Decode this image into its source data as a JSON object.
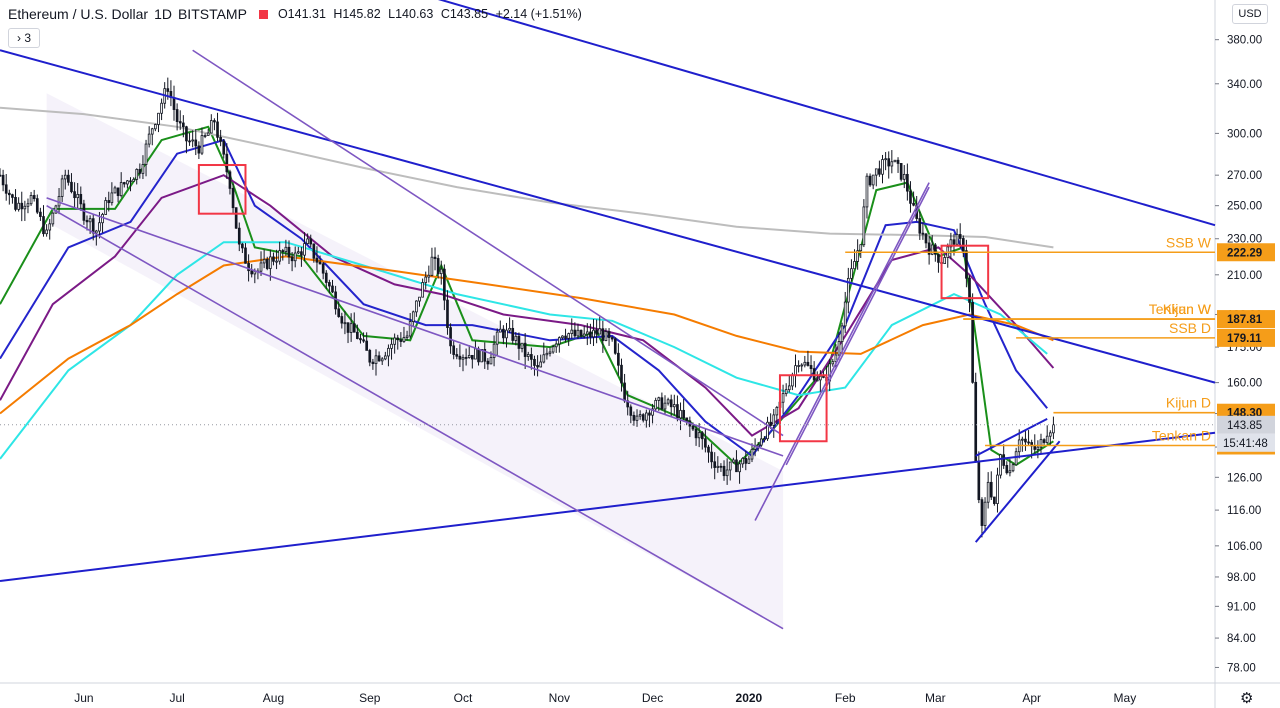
{
  "header": {
    "symbol": "Ethereum / U.S. Dollar",
    "interval": "1D",
    "exchange": "BITSTAMP",
    "open_label": "O",
    "open": "141.31",
    "high_label": "H",
    "high": "145.82",
    "low_label": "L",
    "low": "140.63",
    "close_label": "C",
    "close": "143.85",
    "change": "+2.14 (+1.51%)"
  },
  "collapse_button": {
    "label": "› 3"
  },
  "currency_button": {
    "label": "USD"
  },
  "icons": {
    "settings": "gear-icon",
    "collapse": "chevron-right-icon"
  },
  "colors": {
    "up": "#131722",
    "down": "#131722",
    "ema_green": "#1a8f1a",
    "ema_blue": "#2424cc",
    "ema_purple": "#7b1a86",
    "ema_cyan": "#2ee6e6",
    "ema_orange": "#f57c00",
    "ema_gray": "#bdbdbd",
    "trend": "#1f1fcc",
    "channel": "#7e57c2",
    "level": "#f59d19",
    "box": "#f23645",
    "current_price": "#d1d4dc"
  },
  "chart_data": {
    "type": "candlestick",
    "title": "Ethereum / U.S. Dollar",
    "y_scale": "log",
    "ylim": [
      75,
      420
    ],
    "y_ticks": [
      78,
      84,
      91,
      98,
      106,
      116,
      126,
      136,
      148,
      160,
      175,
      190,
      210,
      230,
      250,
      270,
      300,
      340,
      380
    ],
    "y_tick_labels": [
      "78.00",
      "84.00",
      "91.00",
      "98.00",
      "106.00",
      "116.00",
      "126.00",
      "136.00",
      "148.00",
      "160.00",
      "175.00",
      "190.00",
      "210.00",
      "230.00",
      "250.00",
      "270.00",
      "300.00",
      "340.00",
      "380.00"
    ],
    "x_tick_labels": [
      "Jun",
      "Jul",
      "Aug",
      "Sep",
      "Oct",
      "Nov",
      "Dec",
      "2020",
      "Feb",
      "Mar",
      "Apr",
      "May"
    ],
    "x_tick_days": [
      0,
      30,
      61,
      92,
      122,
      153,
      183,
      214,
      245,
      274,
      305,
      335
    ],
    "x_start_day": -27,
    "x_end_day": 364,
    "price_path": [
      [
        -27,
        270
      ],
      [
        -22,
        250
      ],
      [
        -17,
        255
      ],
      [
        -12,
        232
      ],
      [
        -6,
        270
      ],
      [
        0,
        245
      ],
      [
        4,
        235
      ],
      [
        8,
        255
      ],
      [
        12,
        262
      ],
      [
        18,
        275
      ],
      [
        22,
        305
      ],
      [
        27,
        338
      ],
      [
        30,
        310
      ],
      [
        33,
        295
      ],
      [
        37,
        290
      ],
      [
        40,
        300
      ],
      [
        42,
        310
      ],
      [
        44,
        290
      ],
      [
        47,
        265
      ],
      [
        50,
        225
      ],
      [
        53,
        215
      ],
      [
        56,
        212
      ],
      [
        60,
        218
      ],
      [
        64,
        222
      ],
      [
        68,
        220
      ],
      [
        72,
        227
      ],
      [
        76,
        215
      ],
      [
        80,
        200
      ],
      [
        84,
        185
      ],
      [
        88,
        180
      ],
      [
        92,
        170
      ],
      [
        96,
        172
      ],
      [
        100,
        178
      ],
      [
        104,
        180
      ],
      [
        108,
        200
      ],
      [
        112,
        218
      ],
      [
        115,
        210
      ],
      [
        118,
        175
      ],
      [
        122,
        172
      ],
      [
        126,
        172
      ],
      [
        130,
        170
      ],
      [
        134,
        182
      ],
      [
        138,
        180
      ],
      [
        142,
        172
      ],
      [
        146,
        165
      ],
      [
        150,
        175
      ],
      [
        154,
        182
      ],
      [
        158,
        180
      ],
      [
        162,
        180
      ],
      [
        166,
        182
      ],
      [
        170,
        176
      ],
      [
        174,
        155
      ],
      [
        178,
        145
      ],
      [
        182,
        150
      ],
      [
        186,
        152
      ],
      [
        190,
        150
      ],
      [
        194,
        144
      ],
      [
        198,
        140
      ],
      [
        202,
        132
      ],
      [
        206,
        128
      ],
      [
        210,
        130
      ],
      [
        214,
        132
      ],
      [
        218,
        140
      ],
      [
        222,
        145
      ],
      [
        226,
        158
      ],
      [
        230,
        170
      ],
      [
        234,
        165
      ],
      [
        238,
        160
      ],
      [
        242,
        172
      ],
      [
        246,
        205
      ],
      [
        250,
        230
      ],
      [
        252,
        265
      ],
      [
        256,
        275
      ],
      [
        260,
        280
      ],
      [
        264,
        268
      ],
      [
        268,
        240
      ],
      [
        272,
        225
      ],
      [
        276,
        218
      ],
      [
        280,
        230
      ],
      [
        283,
        226
      ],
      [
        285,
        195
      ],
      [
        287,
        130
      ],
      [
        289,
        110
      ],
      [
        291,
        125
      ],
      [
        293,
        118
      ],
      [
        295,
        133
      ],
      [
        298,
        128
      ],
      [
        301,
        140
      ],
      [
        304,
        136
      ],
      [
        307,
        135
      ],
      [
        310,
        142
      ],
      [
        312,
        143.85
      ]
    ],
    "indicators": [
      {
        "color_key": "ema_green",
        "path": [
          [
            -27,
            195
          ],
          [
            -10,
            248
          ],
          [
            10,
            248
          ],
          [
            25,
            295
          ],
          [
            40,
            305
          ],
          [
            47,
            270
          ],
          [
            55,
            225
          ],
          [
            70,
            220
          ],
          [
            90,
            180
          ],
          [
            105,
            178
          ],
          [
            115,
            215
          ],
          [
            125,
            178
          ],
          [
            150,
            175
          ],
          [
            165,
            182
          ],
          [
            175,
            155
          ],
          [
            195,
            145
          ],
          [
            210,
            130
          ],
          [
            220,
            140
          ],
          [
            240,
            168
          ],
          [
            255,
            260
          ],
          [
            265,
            265
          ],
          [
            275,
            220
          ],
          [
            283,
            225
          ],
          [
            287,
            180
          ],
          [
            292,
            135
          ],
          [
            300,
            130
          ],
          [
            312,
            138
          ]
        ]
      },
      {
        "color_key": "ema_blue",
        "path": [
          [
            -27,
            170
          ],
          [
            -5,
            225
          ],
          [
            15,
            240
          ],
          [
            30,
            285
          ],
          [
            45,
            295
          ],
          [
            55,
            250
          ],
          [
            70,
            230
          ],
          [
            90,
            195
          ],
          [
            110,
            185
          ],
          [
            125,
            185
          ],
          [
            150,
            178
          ],
          [
            170,
            180
          ],
          [
            185,
            165
          ],
          [
            200,
            145
          ],
          [
            215,
            133
          ],
          [
            230,
            155
          ],
          [
            245,
            185
          ],
          [
            258,
            238
          ],
          [
            268,
            240
          ],
          [
            280,
            235
          ],
          [
            290,
            195
          ],
          [
            300,
            165
          ],
          [
            310,
            150
          ]
        ]
      },
      {
        "color_key": "ema_purple",
        "path": [
          [
            -27,
            153
          ],
          [
            -10,
            195
          ],
          [
            10,
            220
          ],
          [
            25,
            255
          ],
          [
            45,
            270
          ],
          [
            60,
            250
          ],
          [
            80,
            220
          ],
          [
            100,
            205
          ],
          [
            115,
            200
          ],
          [
            135,
            190
          ],
          [
            160,
            185
          ],
          [
            180,
            178
          ],
          [
            200,
            158
          ],
          [
            215,
            140
          ],
          [
            230,
            150
          ],
          [
            245,
            180
          ],
          [
            260,
            218
          ],
          [
            275,
            225
          ],
          [
            285,
            210
          ],
          [
            300,
            185
          ],
          [
            312,
            166
          ]
        ]
      },
      {
        "color_key": "ema_cyan",
        "path": [
          [
            -27,
            132
          ],
          [
            -5,
            165
          ],
          [
            15,
            185
          ],
          [
            30,
            210
          ],
          [
            45,
            228
          ],
          [
            65,
            228
          ],
          [
            90,
            215
          ],
          [
            120,
            200
          ],
          [
            150,
            190
          ],
          [
            170,
            187
          ],
          [
            190,
            175
          ],
          [
            210,
            162
          ],
          [
            230,
            155
          ],
          [
            245,
            158
          ],
          [
            260,
            185
          ],
          [
            280,
            200
          ],
          [
            295,
            190
          ],
          [
            310,
            172
          ]
        ]
      },
      {
        "color_key": "ema_orange",
        "path": [
          [
            -27,
            148
          ],
          [
            -5,
            170
          ],
          [
            15,
            185
          ],
          [
            30,
            200
          ],
          [
            45,
            215
          ],
          [
            65,
            220
          ],
          [
            100,
            212
          ],
          [
            130,
            205
          ],
          [
            160,
            198
          ],
          [
            190,
            190
          ],
          [
            210,
            180
          ],
          [
            230,
            173
          ],
          [
            250,
            172
          ],
          [
            270,
            185
          ],
          [
            285,
            190
          ],
          [
            300,
            185
          ],
          [
            312,
            178
          ]
        ]
      },
      {
        "color_key": "ema_gray",
        "path": [
          [
            -27,
            320
          ],
          [
            0,
            315
          ],
          [
            30,
            305
          ],
          [
            60,
            290
          ],
          [
            90,
            275
          ],
          [
            120,
            262
          ],
          [
            150,
            252
          ],
          [
            180,
            245
          ],
          [
            210,
            237
          ],
          [
            240,
            233
          ],
          [
            270,
            232
          ],
          [
            290,
            231
          ],
          [
            312,
            225
          ]
        ]
      }
    ],
    "trendlines": [
      {
        "color_key": "trend",
        "from": [
          -27,
          370
        ],
        "to": [
          364,
          160
        ]
      },
      {
        "color_key": "trend",
        "from": [
          30,
          510
        ],
        "to": [
          364,
          238
        ]
      },
      {
        "color_key": "trend",
        "from": [
          -27,
          97
        ],
        "to": [
          364,
          141
        ]
      },
      {
        "color_key": "trend",
        "from": [
          287,
          107
        ],
        "to": [
          314,
          138
        ]
      },
      {
        "color_key": "trend",
        "from": [
          287,
          133
        ],
        "to": [
          310,
          146
        ]
      },
      {
        "color_key": "channel",
        "from": [
          -12,
          255
        ],
        "to": [
          225,
          133
        ]
      },
      {
        "color_key": "channel",
        "from": [
          -12,
          250
        ],
        "to": [
          225,
          86
        ]
      },
      {
        "color_key": "channel",
        "from": [
          35,
          370
        ],
        "to": [
          225,
          140
        ]
      },
      {
        "color_key": "channel",
        "from": [
          216,
          113
        ],
        "to": [
          272,
          265
        ]
      },
      {
        "color_key": "channel",
        "from": [
          226,
          130
        ],
        "to": [
          272,
          262
        ]
      }
    ],
    "boxes": [
      {
        "x": [
          37,
          52
        ],
        "y": [
          245,
          277
        ]
      },
      {
        "x": [
          224,
          239
        ],
        "y": [
          138,
          163
        ]
      },
      {
        "x": [
          276,
          291
        ],
        "y": [
          198,
          226
        ]
      }
    ],
    "levels": [
      {
        "name": "SSB W",
        "value": 222.29,
        "label": "222.29",
        "from_day": 245
      },
      {
        "name": "Kijun W",
        "value": 187.81,
        "label": "187.81",
        "from_day": 283
      },
      {
        "name": "Tenkan W",
        "value": 187.81,
        "label": "",
        "from_day": 283
      },
      {
        "name": "SSB D",
        "value": 179.11,
        "label": "179.11",
        "from_day": 300
      },
      {
        "name": "Kijun D",
        "value": 148.3,
        "label": "148.30",
        "from_day": 312
      },
      {
        "name": "Tenkan D",
        "value": 136.53,
        "label": "136.53",
        "from_day": 290
      }
    ],
    "current_price": {
      "value": 143.85,
      "label": "143.85",
      "countdown": "15:41:48"
    }
  }
}
